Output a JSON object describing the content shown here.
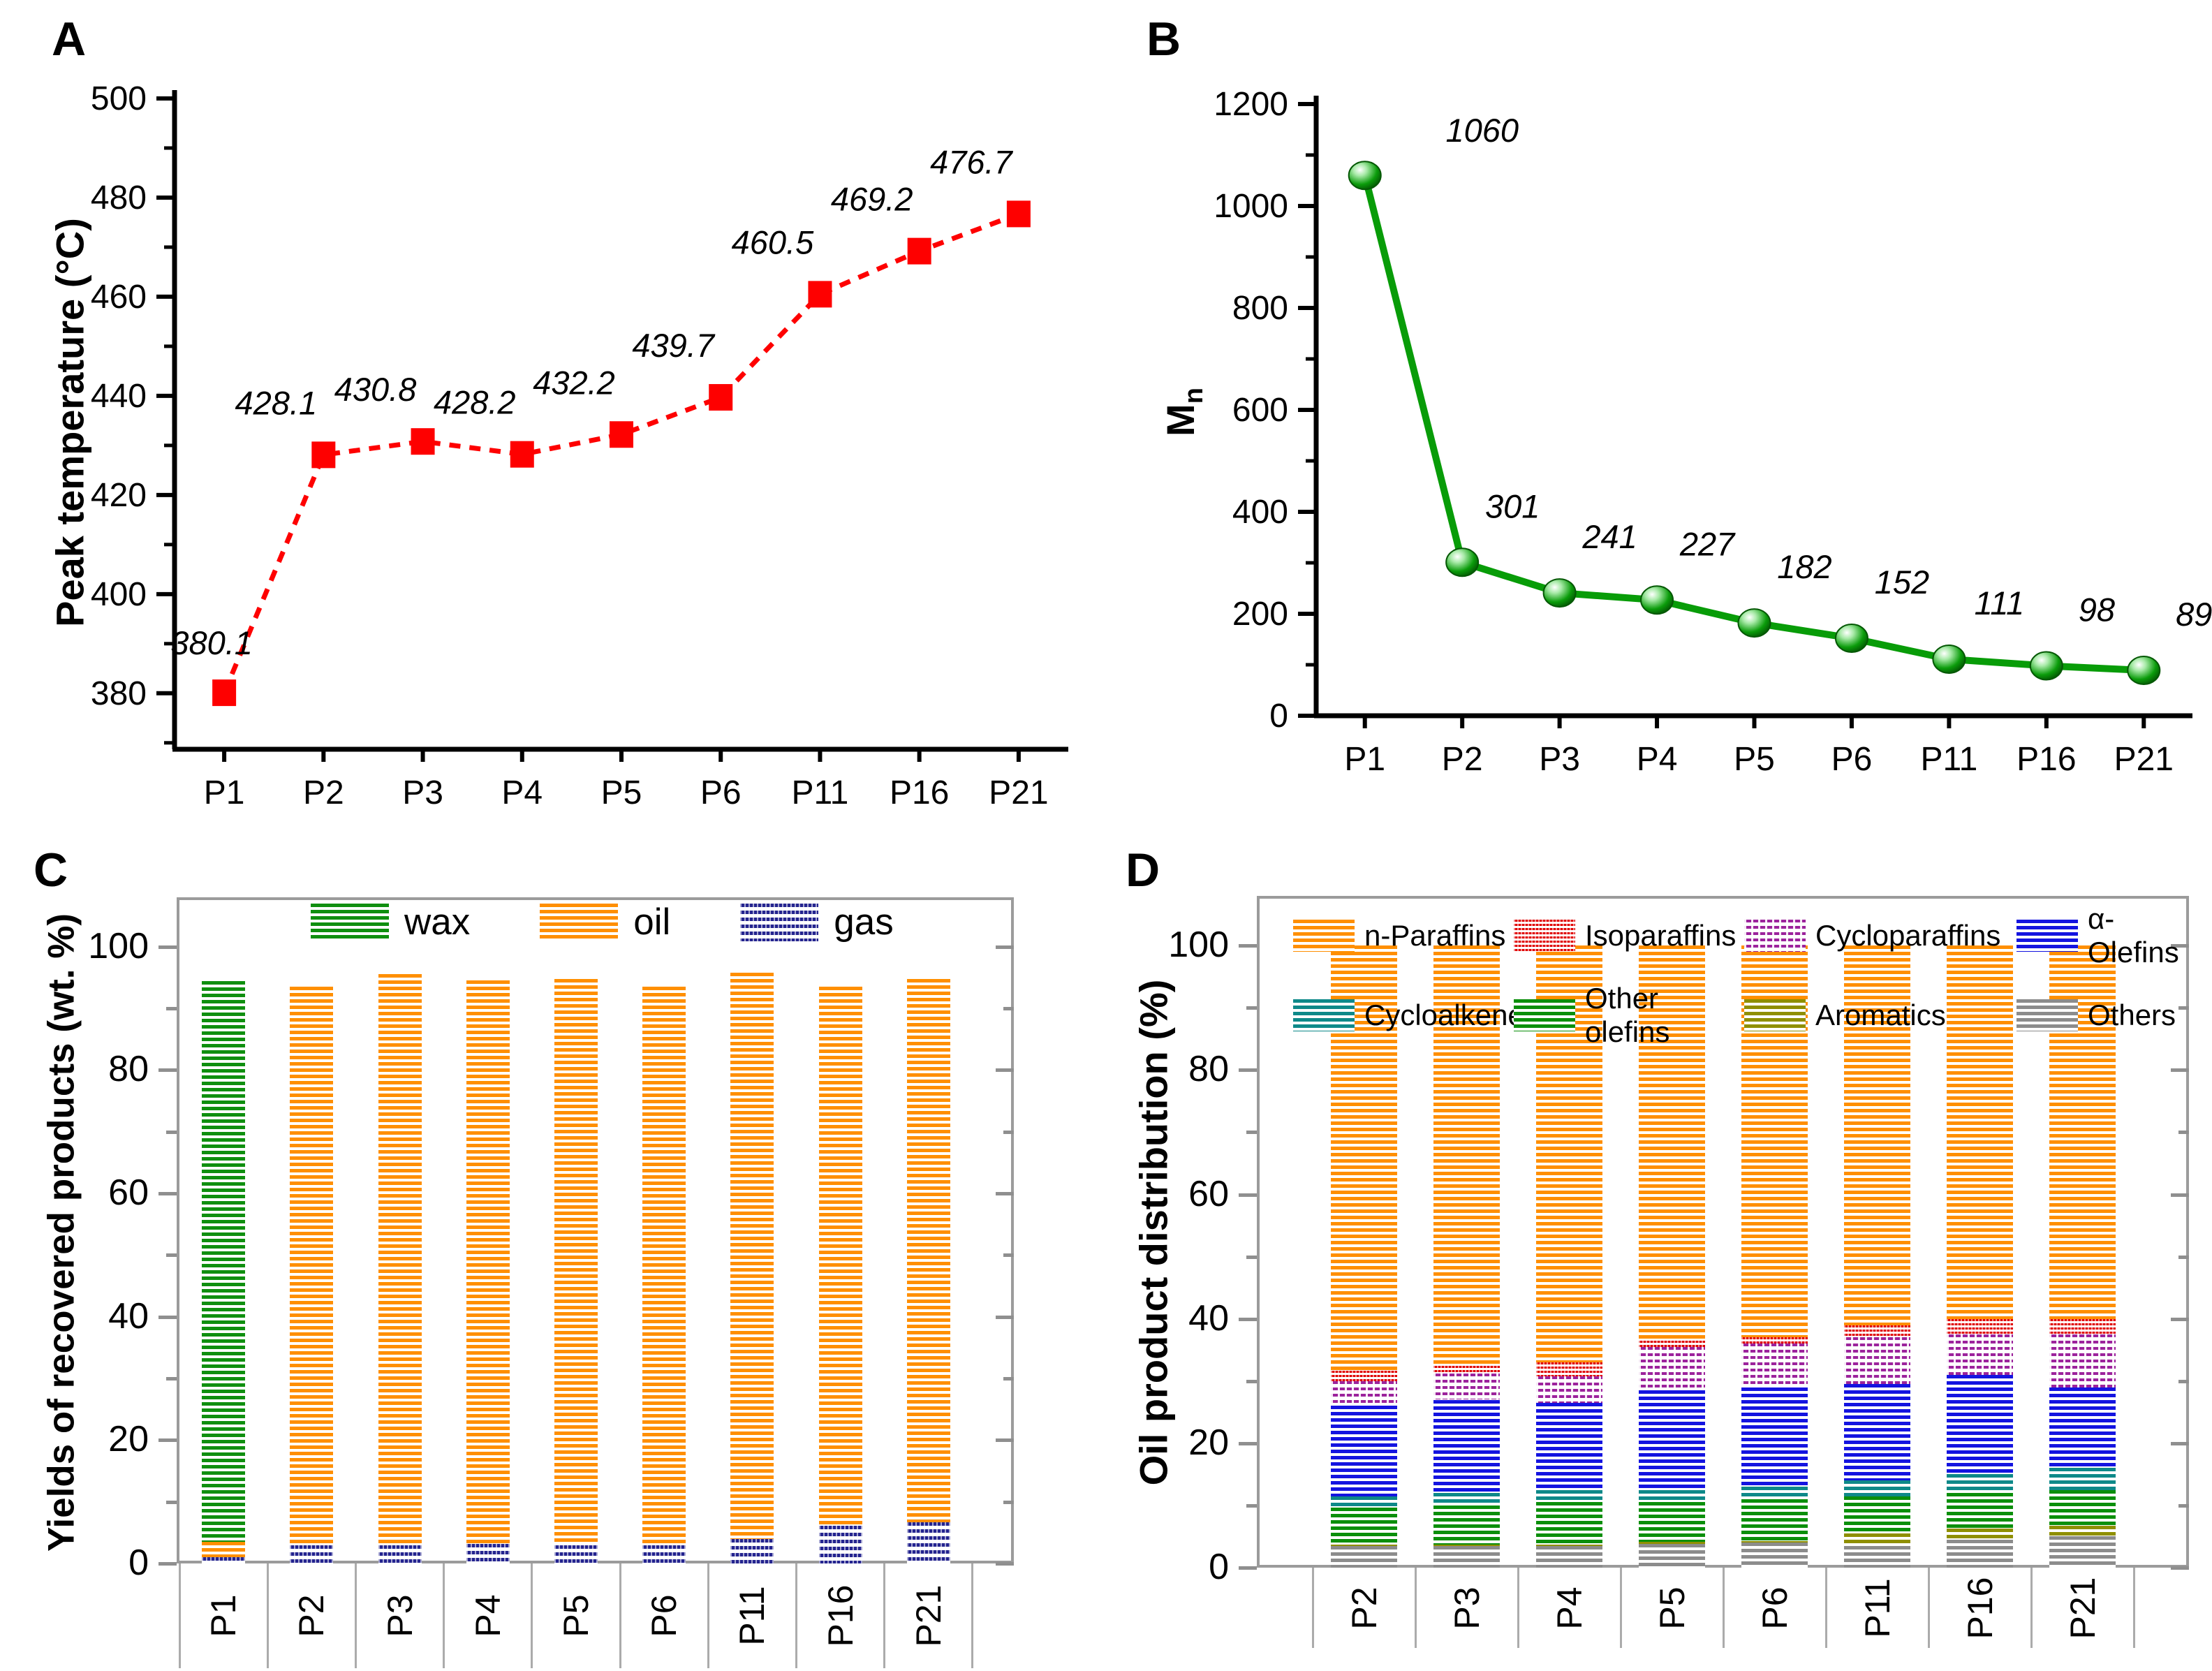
{
  "panels": {
    "A": {
      "letter": "A",
      "ylabel": "Peak temperature (°C)"
    },
    "B": {
      "letter": "B",
      "ylabel_main": "M",
      "ylabel_sub": "n"
    },
    "C": {
      "letter": "C",
      "ylabel": "Yields of recovered products (wt. %)"
    },
    "D": {
      "letter": "D",
      "ylabel": "Oil product distribution (%)"
    }
  },
  "legend_c": [
    "wax",
    "oil",
    "gas"
  ],
  "legend_d": [
    "n-Paraffins",
    "Isoparaffins",
    "Cycloparaffins",
    "α-Olefins",
    "Cycloalkenes",
    "Other olefins",
    "Aromatics",
    "Others"
  ],
  "chart_data": [
    {
      "panel": "A",
      "type": "line",
      "title": "",
      "xlabel": "",
      "ylabel": "Peak temperature (°C)",
      "categories": [
        "P1",
        "P2",
        "P3",
        "P4",
        "P5",
        "P6",
        "P11",
        "P16",
        "P21"
      ],
      "values": [
        380.1,
        428.1,
        430.8,
        428.2,
        432.2,
        439.7,
        460.5,
        469.2,
        476.7
      ],
      "point_labels": [
        "380.1",
        "428.1",
        "430.8",
        "428.2",
        "432.2",
        "439.7",
        "460.5",
        "469.2",
        "476.7"
      ],
      "ylim": [
        368.7,
        500
      ],
      "yticks": [
        380,
        400,
        420,
        440,
        460,
        480,
        500
      ],
      "minor_step": 10,
      "line_color": "#fe0000",
      "line_style": "dashed",
      "marker": "square",
      "grid": false,
      "legend_position": "none"
    },
    {
      "panel": "B",
      "type": "line",
      "title": "",
      "xlabel": "",
      "ylabel": "Mn",
      "categories": [
        "P1",
        "P2",
        "P3",
        "P4",
        "P5",
        "P6",
        "P11",
        "P16",
        "P21"
      ],
      "values": [
        1060,
        301,
        241,
        227,
        182,
        152,
        111,
        98,
        89
      ],
      "point_labels": [
        "1060",
        "301",
        "241",
        "227",
        "182",
        "152",
        "111",
        "98",
        "89"
      ],
      "ylim": [
        0,
        1200
      ],
      "yticks": [
        0,
        200,
        400,
        600,
        800,
        1000,
        1200
      ],
      "minor_step": 100,
      "line_color": "#089c08",
      "line_style": "solid",
      "marker": "sphere",
      "grid": false,
      "legend_position": "none"
    },
    {
      "panel": "C",
      "type": "bar",
      "stacked": true,
      "title": "",
      "xlabel": "",
      "ylabel": "Yields of recovered products (wt. %)",
      "categories": [
        "P1",
        "P2",
        "P3",
        "P4",
        "P5",
        "P6",
        "P11",
        "P16",
        "P21"
      ],
      "series": [
        {
          "name": "gas",
          "color": "#24248f",
          "pattern": "dotstripe",
          "values": [
            1.0,
            2.9,
            3.0,
            3.2,
            3.0,
            2.9,
            4.0,
            6.1,
            6.7
          ]
        },
        {
          "name": "oil",
          "color": "#ff8f00",
          "pattern": "hstripe",
          "values": [
            2.5,
            90.6,
            92.6,
            91.3,
            91.8,
            90.6,
            91.8,
            87.4,
            88.1
          ]
        },
        {
          "name": "wax",
          "color": "#0f8f0f",
          "pattern": "hstripe",
          "values": [
            90.9,
            0,
            0,
            0,
            0,
            0,
            0,
            0,
            0
          ]
        }
      ],
      "ylim": [
        0,
        108
      ],
      "yticks": [
        0,
        20,
        40,
        60,
        80,
        100
      ],
      "minor_step": 10,
      "grid": false,
      "legend_position": "top-inside"
    },
    {
      "panel": "D",
      "type": "bar",
      "stacked": true,
      "title": "",
      "xlabel": "",
      "ylabel": "Oil product distribution (%)",
      "categories": [
        "P2",
        "P3",
        "P4",
        "P5",
        "P6",
        "P11",
        "P16",
        "P21"
      ],
      "series": [
        {
          "name": "Others",
          "color": "#8c8c8c",
          "pattern": "hstripe",
          "values": [
            3.5,
            3.5,
            3.5,
            3.8,
            4.0,
            3.5,
            4.5,
            5.0
          ]
        },
        {
          "name": "Aromatics",
          "color": "#8f8f00",
          "pattern": "hstripe",
          "values": [
            0.2,
            0.2,
            0.2,
            0.3,
            0.3,
            2.0,
            1.8,
            1.7
          ]
        },
        {
          "name": "Other olefins",
          "color": "#0b8f0b",
          "pattern": "hstripe",
          "values": [
            6.0,
            6.3,
            6.8,
            6.4,
            6.7,
            6.0,
            5.7,
            5.8
          ]
        },
        {
          "name": "Cycloalkenes",
          "color": "#0e8989",
          "pattern": "hstripe",
          "values": [
            1.8,
            2.0,
            2.0,
            2.0,
            2.0,
            2.5,
            3.0,
            3.5
          ]
        },
        {
          "name": "α-Olefins",
          "color": "#1414e0",
          "pattern": "hstripe",
          "values": [
            14.5,
            15.0,
            14.0,
            16.0,
            16.0,
            15.5,
            16.0,
            13.0
          ]
        },
        {
          "name": "Cycloparaffins",
          "color": "#9c239c",
          "pattern": "hdash",
          "values": [
            4.0,
            4.2,
            4.3,
            7.0,
            7.0,
            7.5,
            6.5,
            8.5
          ]
        },
        {
          "name": "Isoparaffins",
          "color": "#e00000",
          "pattern": "fine",
          "values": [
            1.7,
            1.3,
            2.2,
            1.0,
            1.0,
            2.0,
            2.5,
            2.5
          ]
        },
        {
          "name": "n-Paraffins",
          "color": "#ff8f00",
          "pattern": "hstripe",
          "values": [
            68.3,
            67.5,
            67.0,
            63.5,
            63.0,
            61.0,
            60.0,
            60.0
          ]
        }
      ],
      "ylim": [
        0,
        108
      ],
      "yticks": [
        0,
        20,
        40,
        60,
        80,
        100
      ],
      "minor_step": 10,
      "grid": false,
      "legend_position": "top-inside"
    }
  ]
}
